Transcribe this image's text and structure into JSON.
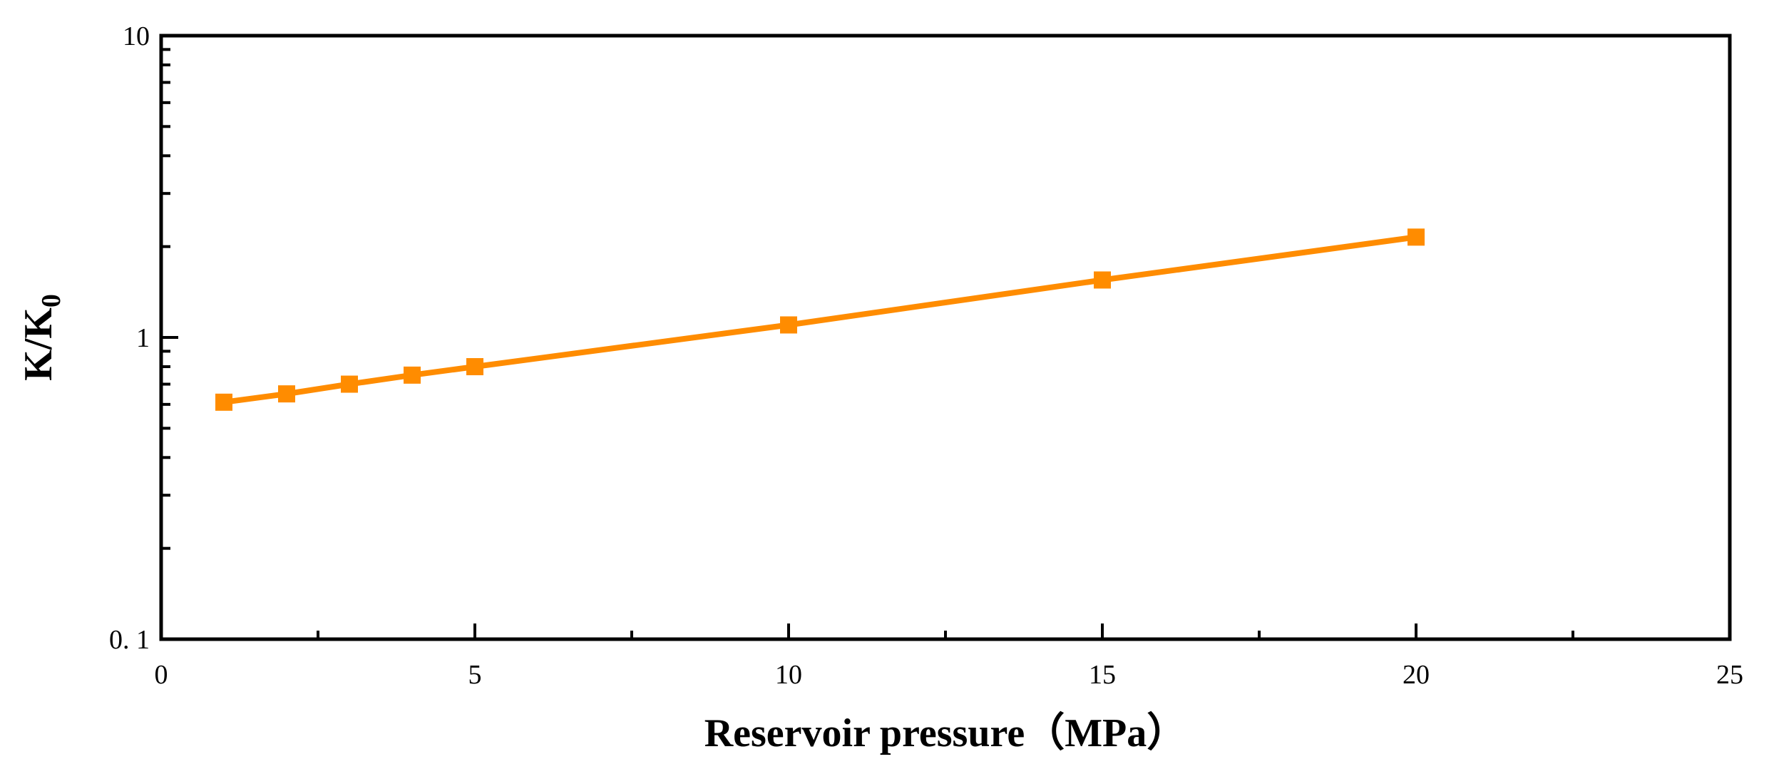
{
  "chart_data": {
    "type": "line",
    "title": "",
    "xlabel": "Reservoir pressure（MPa）",
    "ylabel": {
      "main": "K/K",
      "sub": "0"
    },
    "xlim": [
      0,
      25
    ],
    "ylim": [
      0.1,
      10
    ],
    "yscale": "log",
    "x_major_ticks": [
      0,
      5,
      10,
      15,
      20,
      25
    ],
    "x_tick_labels": [
      "0",
      "5",
      "10",
      "15",
      "20",
      "25"
    ],
    "x_minor_ticks": [
      2.5,
      7.5,
      12.5,
      17.5,
      22.5
    ],
    "y_major_ticks": [
      0.1,
      1,
      10
    ],
    "y_tick_labels": [
      "0. 1",
      "1",
      "10"
    ],
    "grid": false,
    "series": [
      {
        "name": "K/K0",
        "color": "#FF8C00",
        "marker": "square",
        "x": [
          1,
          2,
          3,
          4,
          5,
          10,
          15,
          20
        ],
        "values": [
          0.61,
          0.65,
          0.7,
          0.75,
          0.8,
          1.1,
          1.55,
          2.15
        ]
      }
    ]
  }
}
